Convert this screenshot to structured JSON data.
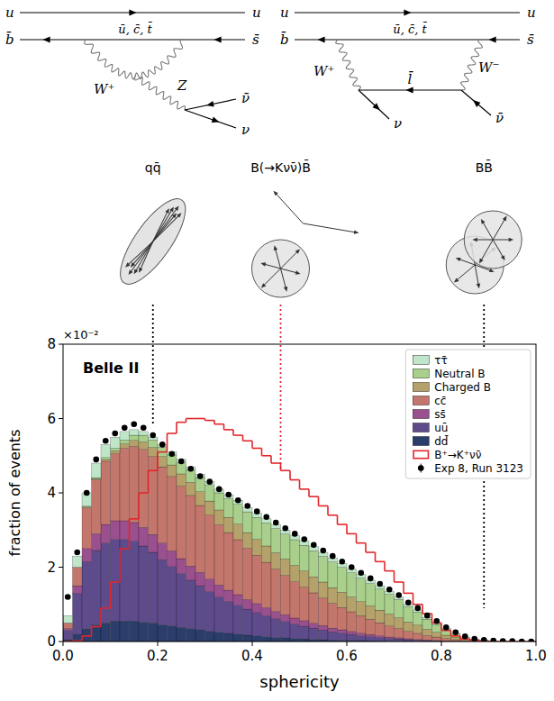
{
  "diagrams": [
    {
      "top_in": "u",
      "top_out": "u",
      "bottom_in": "b̄",
      "bottom_out": "s̄",
      "loop": "ū, c̄, t̄",
      "w": "W⁺",
      "z": "Z",
      "nu_bar": "ν̄",
      "nu": "ν"
    },
    {
      "top_in": "u",
      "top_out": "u",
      "bottom_in": "b̄",
      "bottom_out": "s̄",
      "loop": "ū, c̄, t̄",
      "w_plus": "W⁺",
      "w_minus": "W⁻",
      "lepton": "l̄",
      "nu": "ν",
      "nu_bar": "ν̄"
    }
  ],
  "chart_data": {
    "type": "histogram",
    "stacked": true,
    "grid": false,
    "legend": "upper right",
    "xlabel": "sphericity",
    "ylabel": "fraction of events",
    "y_multiplier": "×10⁻²",
    "experiment": "Belle II",
    "xlim": [
      0,
      1
    ],
    "ylim": [
      0,
      8
    ],
    "xticks": [
      {
        "value": 0,
        "label": "0.0"
      },
      {
        "value": 0.2,
        "label": "0.2"
      },
      {
        "value": 0.4,
        "label": "0.4"
      },
      {
        "value": 0.6,
        "label": "0.6"
      },
      {
        "value": 0.8,
        "label": "0.8"
      },
      {
        "value": 1,
        "label": "1.0"
      }
    ],
    "yticks": [
      0,
      2,
      4,
      6,
      8
    ],
    "annotations": [
      {
        "label": "qq̄",
        "x": 0.19,
        "y": 5.8,
        "color": "#000000"
      },
      {
        "label": "B(→Kνν̄)B̄",
        "x": 0.46,
        "y": 4.6,
        "color": "#e3262b"
      },
      {
        "label": "BB̄",
        "x": 0.89,
        "y": 0.9,
        "color": "#000000"
      }
    ],
    "bins": [
      0,
      0.02,
      0.04,
      0.06,
      0.08,
      0.1,
      0.12,
      0.14,
      0.16,
      0.18,
      0.2,
      0.22,
      0.24,
      0.26,
      0.28,
      0.3,
      0.32,
      0.34,
      0.36,
      0.38,
      0.4,
      0.42,
      0.44,
      0.46,
      0.48,
      0.5,
      0.52,
      0.54,
      0.56,
      0.58,
      0.6,
      0.62,
      0.64,
      0.66,
      0.68,
      0.7,
      0.72,
      0.74,
      0.76,
      0.78,
      0.8,
      0.82,
      0.84,
      0.86,
      0.88,
      0.9,
      0.92,
      0.94,
      0.96,
      0.98,
      1
    ],
    "series": [
      {
        "name": "dd̄",
        "type": "bar",
        "color": "#2b3d6b",
        "values": [
          0.05,
          0.2,
          0.35,
          0.45,
          0.5,
          0.55,
          0.55,
          0.55,
          0.52,
          0.5,
          0.45,
          0.42,
          0.38,
          0.35,
          0.32,
          0.28,
          0.25,
          0.22,
          0.2,
          0.17,
          0.15,
          0.13,
          0.11,
          0.1,
          0.08,
          0.07,
          0.06,
          0.05,
          0.04,
          0.035,
          0.03,
          0.025,
          0.02,
          0.015,
          0.01,
          0.01,
          0.005,
          0.005,
          0,
          0,
          0,
          0,
          0,
          0,
          0,
          0,
          0,
          0,
          0,
          0
        ]
      },
      {
        "name": "uū",
        "type": "bar",
        "color": "#5e4b8b",
        "values": [
          0.25,
          1.1,
          1.8,
          2.0,
          2.15,
          2.2,
          2.2,
          2.15,
          2.05,
          1.9,
          1.75,
          1.6,
          1.45,
          1.3,
          1.18,
          1.06,
          0.95,
          0.86,
          0.78,
          0.7,
          0.63,
          0.56,
          0.5,
          0.44,
          0.39,
          0.34,
          0.3,
          0.26,
          0.22,
          0.19,
          0.16,
          0.13,
          0.11,
          0.09,
          0.07,
          0.06,
          0.045,
          0.035,
          0.025,
          0.02,
          0.01,
          0.005,
          0,
          0,
          0,
          0,
          0,
          0,
          0,
          0
        ]
      },
      {
        "name": "ss̄",
        "type": "bar",
        "color": "#9a4f8e",
        "values": [
          0.05,
          0.2,
          0.35,
          0.45,
          0.5,
          0.5,
          0.5,
          0.5,
          0.5,
          0.48,
          0.45,
          0.42,
          0.4,
          0.38,
          0.36,
          0.34,
          0.32,
          0.3,
          0.28,
          0.26,
          0.24,
          0.22,
          0.2,
          0.18,
          0.16,
          0.15,
          0.13,
          0.12,
          0.1,
          0.09,
          0.08,
          0.07,
          0.06,
          0.05,
          0.04,
          0.03,
          0.025,
          0.02,
          0.015,
          0.01,
          0.01,
          0.005,
          0,
          0,
          0,
          0,
          0,
          0,
          0,
          0
        ]
      },
      {
        "name": "cc̄",
        "type": "bar",
        "color": "#c3766c",
        "values": [
          0.15,
          0.5,
          1.1,
          1.45,
          1.7,
          1.8,
          1.95,
          2.05,
          2.1,
          2.1,
          2.05,
          2.0,
          1.95,
          1.9,
          1.8,
          1.72,
          1.62,
          1.55,
          1.48,
          1.38,
          1.3,
          1.22,
          1.14,
          1.06,
          0.98,
          0.9,
          0.82,
          0.74,
          0.67,
          0.6,
          0.53,
          0.47,
          0.41,
          0.35,
          0.3,
          0.25,
          0.2,
          0.16,
          0.12,
          0.09,
          0.06,
          0.04,
          0.02,
          0.01,
          0.005,
          0,
          0,
          0,
          0,
          0
        ]
      },
      {
        "name": "Charged B",
        "type": "bar",
        "color": "#b5a16a",
        "values": [
          0,
          0,
          0.02,
          0.03,
          0.05,
          0.08,
          0.12,
          0.16,
          0.2,
          0.24,
          0.28,
          0.31,
          0.33,
          0.35,
          0.37,
          0.38,
          0.4,
          0.41,
          0.42,
          0.42,
          0.43,
          0.44,
          0.44,
          0.44,
          0.44,
          0.44,
          0.43,
          0.43,
          0.42,
          0.41,
          0.4,
          0.38,
          0.36,
          0.34,
          0.32,
          0.29,
          0.25,
          0.22,
          0.17,
          0.13,
          0.09,
          0.06,
          0.03,
          0.015,
          0.008,
          0.004,
          0.003,
          0.001,
          0,
          0
        ]
      },
      {
        "name": "Neutral B",
        "type": "bar",
        "color": "#a8cf8b",
        "values": [
          0,
          0,
          0.02,
          0.03,
          0.05,
          0.07,
          0.1,
          0.14,
          0.18,
          0.2,
          0.24,
          0.27,
          0.3,
          0.33,
          0.38,
          0.42,
          0.46,
          0.5,
          0.53,
          0.56,
          0.59,
          0.62,
          0.65,
          0.67,
          0.69,
          0.69,
          0.7,
          0.69,
          0.69,
          0.67,
          0.65,
          0.63,
          0.6,
          0.57,
          0.53,
          0.49,
          0.41,
          0.35,
          0.27,
          0.21,
          0.15,
          0.09,
          0.055,
          0.025,
          0.012,
          0.008,
          0.005,
          0.003,
          0,
          0
        ]
      },
      {
        "name": "ττ̄",
        "type": "bar",
        "color": "#bfe6c8",
        "values": [
          0.2,
          0.3,
          0.36,
          0.39,
          0.35,
          0.3,
          0.23,
          0.15,
          0.1,
          0.08,
          0.08,
          0.08,
          0.09,
          0.09,
          0.09,
          0.1,
          0.1,
          0.11,
          0.11,
          0.11,
          0.11,
          0.11,
          0.11,
          0.11,
          0.11,
          0.11,
          0.11,
          0.11,
          0.11,
          0.105,
          0.1,
          0.095,
          0.09,
          0.085,
          0.08,
          0.07,
          0.065,
          0.06,
          0.05,
          0.04,
          0.03,
          0.02,
          0.015,
          0.01,
          0.005,
          0.003,
          0.002,
          0.001,
          0,
          0
        ]
      },
      {
        "name": "B⁺→K⁺νν̄",
        "type": "step",
        "line_style": "solid",
        "color": "#e3262b",
        "values": [
          0,
          0.02,
          0.15,
          0.4,
          0.9,
          1.6,
          2.5,
          3.3,
          4.0,
          4.6,
          5.1,
          5.6,
          5.9,
          6.0,
          6.0,
          5.95,
          5.85,
          5.7,
          5.55,
          5.4,
          5.2,
          5.0,
          4.8,
          4.6,
          4.35,
          4.1,
          3.9,
          3.65,
          3.4,
          3.15,
          2.9,
          2.65,
          2.4,
          2.15,
          1.9,
          1.6,
          1.3,
          1.0,
          0.75,
          0.5,
          0.3,
          0.15,
          0.07,
          0.03,
          0.01,
          0,
          0,
          0,
          0,
          0
        ]
      },
      {
        "name": "Exp 8, Run 3123",
        "type": "scatter",
        "marker": "circle",
        "color": "#000000",
        "x": [
          0.01,
          0.03,
          0.05,
          0.07,
          0.09,
          0.11,
          0.13,
          0.15,
          0.17,
          0.19,
          0.21,
          0.23,
          0.25,
          0.27,
          0.29,
          0.31,
          0.33,
          0.35,
          0.37,
          0.39,
          0.41,
          0.43,
          0.45,
          0.47,
          0.49,
          0.51,
          0.53,
          0.55,
          0.57,
          0.59,
          0.61,
          0.63,
          0.65,
          0.67,
          0.69,
          0.71,
          0.73,
          0.75,
          0.77,
          0.79,
          0.81,
          0.83,
          0.85,
          0.87,
          0.89,
          0.91,
          0.93,
          0.95,
          0.97,
          0.99
        ],
        "values": [
          1.2,
          2.4,
          4.0,
          4.9,
          5.4,
          5.6,
          5.75,
          5.85,
          5.75,
          5.55,
          5.3,
          5.05,
          4.85,
          4.65,
          4.45,
          4.3,
          4.1,
          3.95,
          3.8,
          3.65,
          3.5,
          3.35,
          3.2,
          3.05,
          2.9,
          2.75,
          2.6,
          2.45,
          2.3,
          2.15,
          2.0,
          1.85,
          1.7,
          1.55,
          1.4,
          1.25,
          1.05,
          0.9,
          0.7,
          0.55,
          0.38,
          0.25,
          0.14,
          0.07,
          0.04,
          0.02,
          0.01,
          0.01,
          0,
          0
        ]
      }
    ]
  }
}
